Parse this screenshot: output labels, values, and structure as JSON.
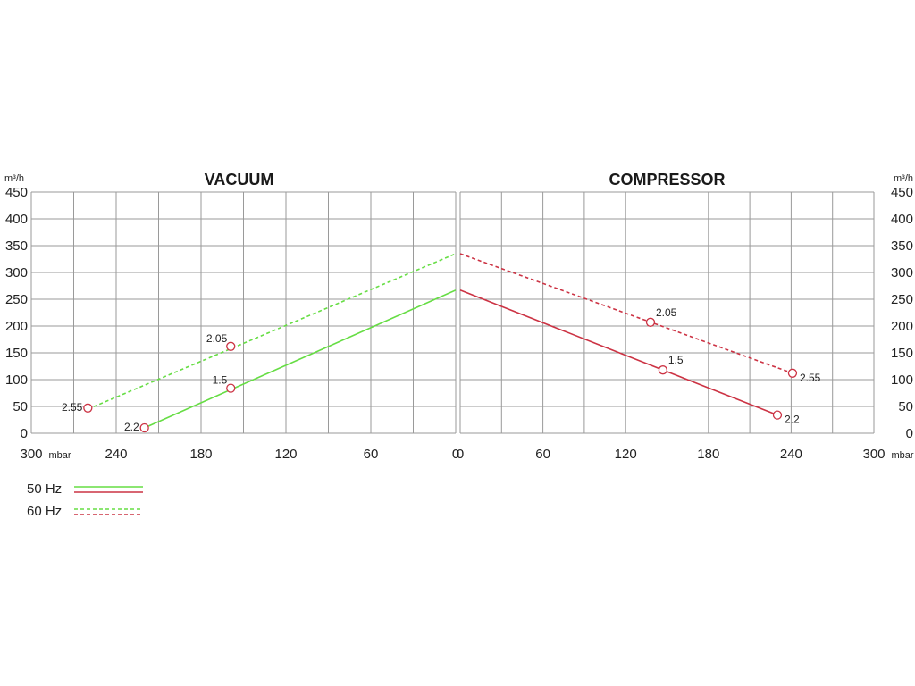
{
  "colors": {
    "green": "#66dd44",
    "red": "#cc3344",
    "marker": "#cc3344",
    "grid": "#9a9a9a"
  },
  "y_unit": "m³/h",
  "x_unit": "mbar",
  "legend": [
    {
      "label": "50 Hz",
      "style": "solid"
    },
    {
      "label": "60 Hz",
      "style": "dashed"
    }
  ],
  "chart_data": [
    {
      "type": "line",
      "title": "VACUUM",
      "xlabel": "mbar",
      "ylabel": "m³/h",
      "xlim": [
        300,
        0
      ],
      "ylim": [
        0,
        450
      ],
      "x_ticks": [
        "300",
        "240",
        "180",
        "120",
        "60",
        "0"
      ],
      "y_ticks": [
        "0",
        "50",
        "100",
        "150",
        "200",
        "250",
        "300",
        "350",
        "400",
        "450"
      ],
      "grid": true,
      "series": [
        {
          "name": "50 Hz",
          "color": "green",
          "style": "solid",
          "x": [
            220,
            0
          ],
          "y": [
            10,
            267
          ],
          "points": [
            {
              "x": 220,
              "y": 10,
              "label": "2.2"
            },
            {
              "x": 159,
              "y": 84,
              "label": "1.5"
            }
          ]
        },
        {
          "name": "60 Hz",
          "color": "green",
          "style": "dashed",
          "x": [
            260,
            0
          ],
          "y": [
            45,
            335
          ],
          "points": [
            {
              "x": 260,
              "y": 47,
              "label": "2.55"
            },
            {
              "x": 159,
              "y": 162,
              "label": "2.05"
            }
          ]
        }
      ]
    },
    {
      "type": "line",
      "title": "COMPRESSOR",
      "xlabel": "mbar",
      "ylabel": "m³/h",
      "xlim": [
        0,
        300
      ],
      "ylim": [
        0,
        450
      ],
      "x_ticks": [
        "0",
        "60",
        "120",
        "180",
        "240",
        "300"
      ],
      "y_ticks": [
        "0",
        "50",
        "100",
        "150",
        "200",
        "250",
        "300",
        "350",
        "400",
        "450"
      ],
      "grid": true,
      "series": [
        {
          "name": "50 Hz",
          "color": "red",
          "style": "solid",
          "x": [
            0,
            230
          ],
          "y": [
            267,
            34
          ],
          "points": [
            {
              "x": 147,
              "y": 118,
              "label": "1.5"
            },
            {
              "x": 230,
              "y": 34,
              "label": "2.2"
            }
          ]
        },
        {
          "name": "60 Hz",
          "color": "red",
          "style": "dashed",
          "x": [
            0,
            241
          ],
          "y": [
            335,
            112
          ],
          "points": [
            {
              "x": 138,
              "y": 207,
              "label": "2.05"
            },
            {
              "x": 241,
              "y": 112,
              "label": "2.55"
            }
          ]
        }
      ]
    }
  ]
}
